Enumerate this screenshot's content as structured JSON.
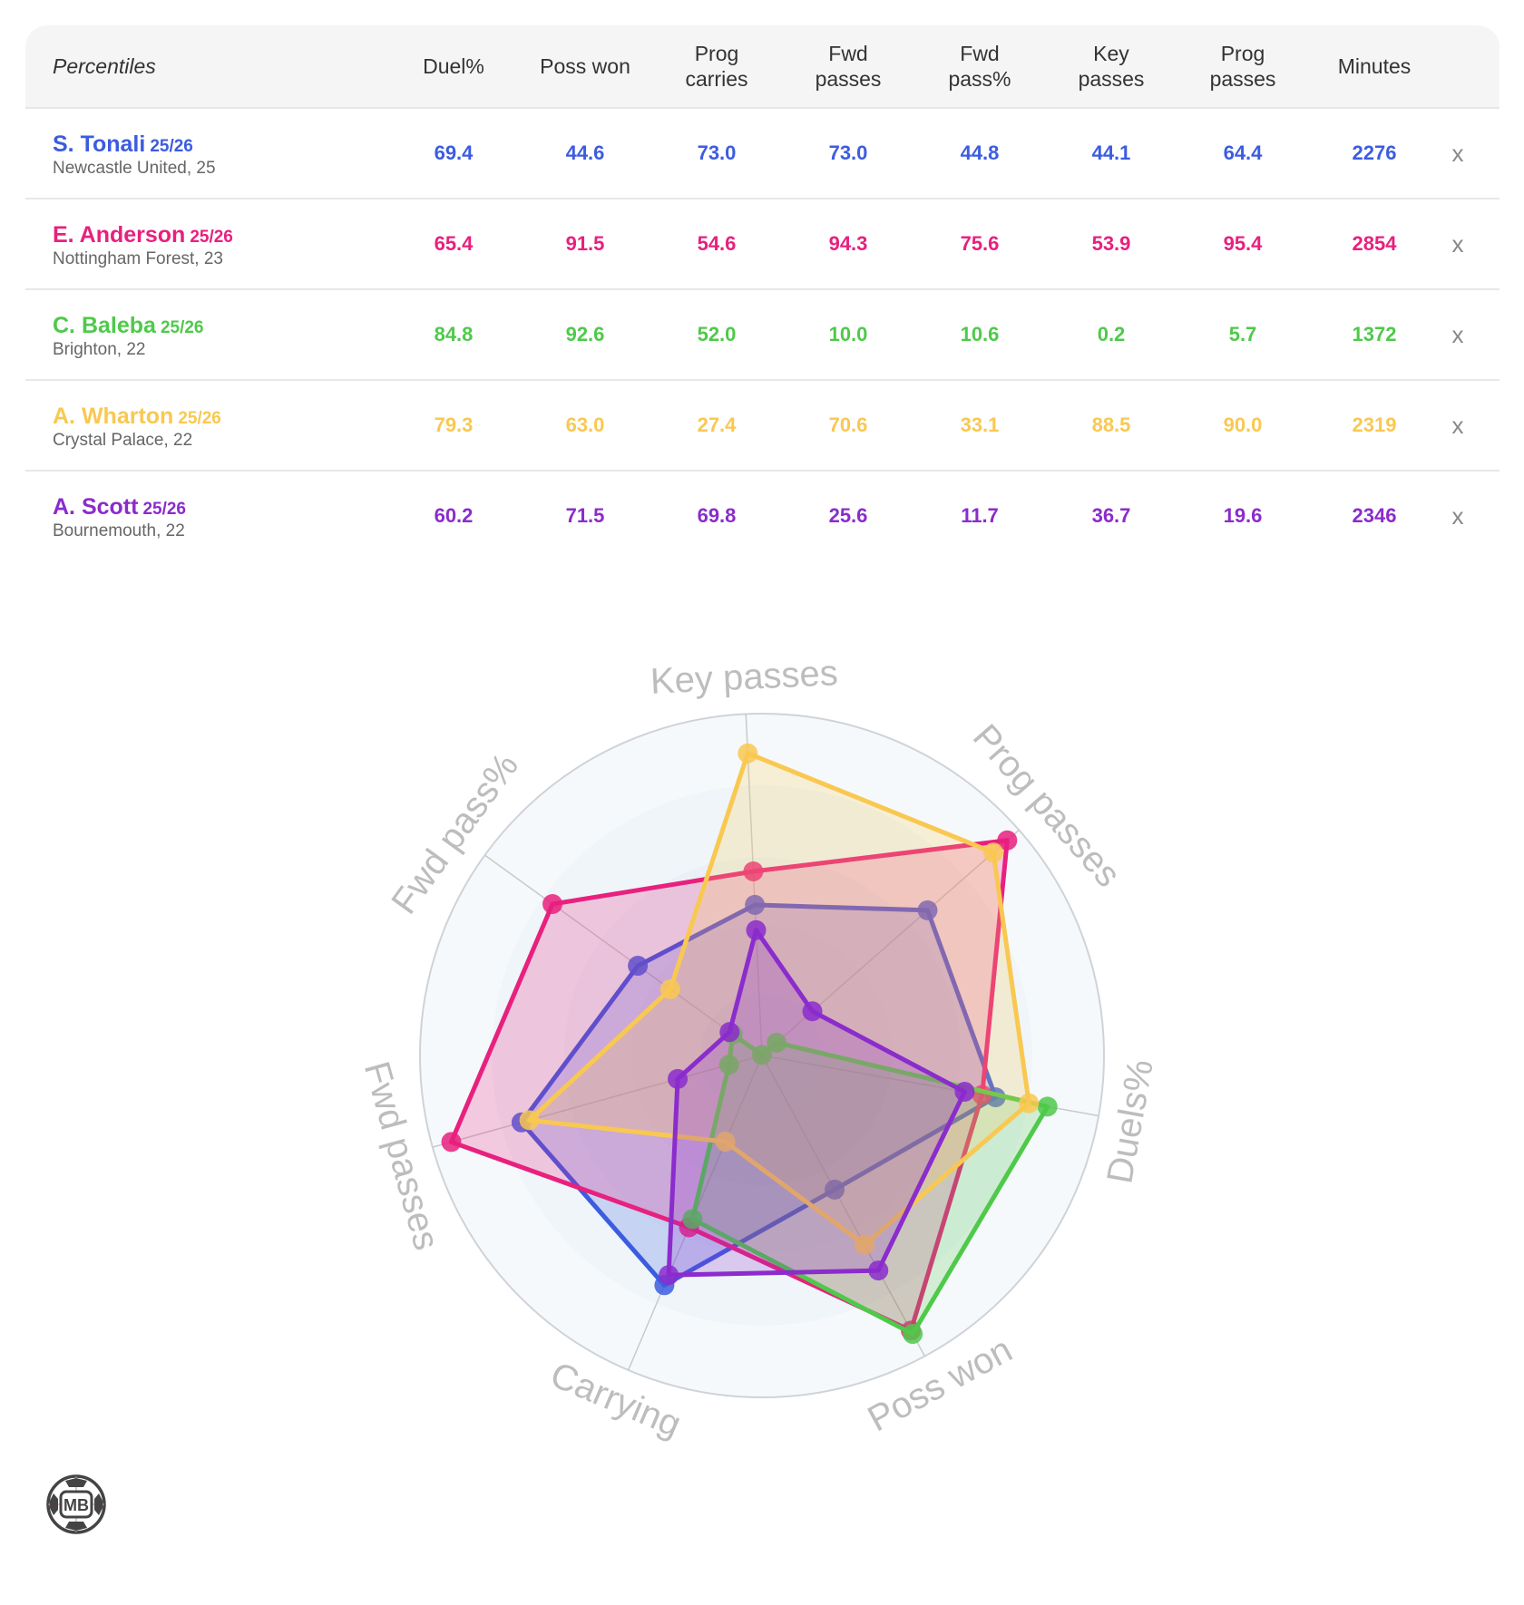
{
  "table": {
    "header_label": "Percentiles",
    "columns": [
      {
        "key": "duel",
        "label": "Duel%"
      },
      {
        "key": "poss_won",
        "label": "Poss won"
      },
      {
        "key": "prog_carries",
        "label": "Prog\ncarries"
      },
      {
        "key": "fwd_passes",
        "label": "Fwd\npasses"
      },
      {
        "key": "fwd_pass_pct",
        "label": "Fwd\npass%"
      },
      {
        "key": "key_passes",
        "label": "Key\npasses"
      },
      {
        "key": "prog_passes",
        "label": "Prog\npasses"
      },
      {
        "key": "minutes",
        "label": "Minutes"
      }
    ],
    "remove_label": "x",
    "rows": [
      {
        "name": "S. Tonali",
        "season": "25/26",
        "club_age": "Newcastle United, 25",
        "color": "#3c5ce0",
        "values": [
          "69.4",
          "44.6",
          "73.0",
          "73.0",
          "44.8",
          "44.1",
          "64.4",
          "2276"
        ]
      },
      {
        "name": "E. Anderson",
        "season": "25/26",
        "club_age": "Nottingham Forest, 23",
        "color": "#e8207e",
        "values": [
          "65.4",
          "91.5",
          "54.6",
          "94.3",
          "75.6",
          "53.9",
          "95.4",
          "2854"
        ]
      },
      {
        "name": "C. Baleba",
        "season": "25/26",
        "club_age": "Brighton, 22",
        "color": "#4fc94a",
        "values": [
          "84.8",
          "92.6",
          "52.0",
          "10.0",
          "10.6",
          "0.2",
          "5.7",
          "1372"
        ]
      },
      {
        "name": "A. Wharton",
        "season": "25/26",
        "club_age": "Crystal Palace, 22",
        "color": "#f9c851",
        "values": [
          "79.3",
          "63.0",
          "27.4",
          "70.6",
          "33.1",
          "88.5",
          "90.0",
          "2319"
        ]
      },
      {
        "name": "A. Scott",
        "season": "25/26",
        "club_age": "Bournemouth, 22",
        "color": "#8b2ccc",
        "values": [
          "60.2",
          "71.5",
          "69.8",
          "25.6",
          "11.7",
          "36.7",
          "19.6",
          "2346"
        ]
      }
    ]
  },
  "logo": {
    "text": "MB"
  },
  "chart_data": {
    "type": "radar",
    "title": "",
    "axes": [
      "Key passes",
      "Prog passes",
      "Duels%",
      "Poss won",
      "Carrying",
      "Fwd passes",
      "Fwd pass%"
    ],
    "range": [
      0,
      100
    ],
    "series": [
      {
        "name": "S. Tonali",
        "color": "#3c5ce0",
        "values": [
          44.1,
          64.4,
          69.4,
          44.6,
          73.0,
          73.0,
          44.8
        ]
      },
      {
        "name": "E. Anderson",
        "color": "#e8207e",
        "values": [
          53.9,
          95.4,
          65.4,
          91.5,
          54.6,
          94.3,
          75.6
        ]
      },
      {
        "name": "C. Baleba",
        "color": "#4fc94a",
        "values": [
          0.2,
          5.7,
          84.8,
          92.6,
          52.0,
          10.0,
          10.6
        ]
      },
      {
        "name": "A. Wharton",
        "color": "#f9c851",
        "values": [
          88.5,
          90.0,
          79.3,
          63.0,
          27.4,
          70.6,
          33.1
        ]
      },
      {
        "name": "A. Scott",
        "color": "#8b2ccc",
        "values": [
          36.7,
          19.6,
          60.2,
          71.5,
          69.8,
          25.6,
          11.7
        ]
      }
    ]
  }
}
